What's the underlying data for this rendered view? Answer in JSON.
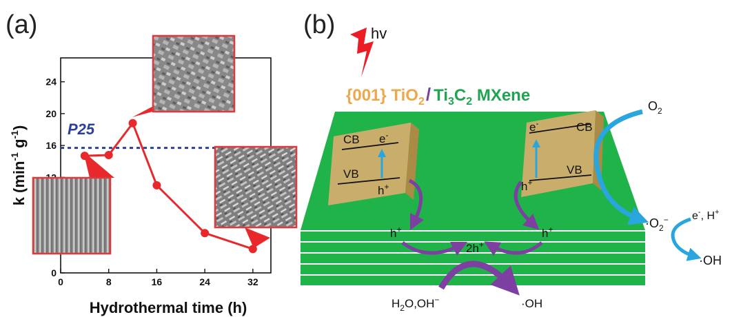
{
  "panel_a": {
    "label": "(a)",
    "reference_label": "P25",
    "chart_data": {
      "type": "line",
      "xlabel": "Hydrothermal time (h)",
      "ylabel_main": "k (min",
      "ylabel_exp1": "-1",
      "ylabel_g": " g",
      "ylabel_exp2": "-1",
      "ylabel_end": ")",
      "x": [
        4,
        8,
        12,
        16,
        24,
        32
      ],
      "y": [
        14.7,
        14.8,
        18.8,
        11.0,
        5.0,
        3.0
      ],
      "xlim": [
        0,
        35
      ],
      "ylim": [
        0,
        27
      ],
      "xticks": [
        0,
        8,
        16,
        24,
        32
      ],
      "yticks": [
        0,
        4,
        8,
        12,
        16,
        20,
        24
      ],
      "reference_y": 15.7,
      "line_color": "#e8282b",
      "reference_color": "#2b3f9c"
    }
  },
  "panel_b": {
    "label": "(b)",
    "light": "hv",
    "title": {
      "part1": "{001} TiO",
      "part1_sub": "2",
      "slash": "/",
      "part2": "Ti",
      "part2_sub1": "3",
      "part2_mid": "C",
      "part2_sub2": "2",
      "part2_end": " MXene"
    },
    "left_crystal": {
      "cb": "CB",
      "vb": "VB",
      "electron": "e",
      "electron_sup": "-",
      "hole": "h",
      "hole_sup": "+"
    },
    "right_crystal": {
      "cb": "CB",
      "vb": "VB",
      "electron": "e",
      "electron_sup": "-",
      "hole": "h",
      "hole_sup": "+"
    },
    "holes_left": {
      "text": "h",
      "sup": "+"
    },
    "holes_right": {
      "text": "h",
      "sup": "+"
    },
    "two_holes": {
      "text": "2h",
      "sup": "+"
    },
    "reactant": {
      "p1": "H",
      "sub": "2",
      "p2": "O,OH",
      "sup": "−"
    },
    "product_oh_bottom": {
      "pre": "·",
      "text": "OH"
    },
    "o2": {
      "text": "O",
      "sub": "2"
    },
    "superoxide": {
      "pre": "·",
      "text": "O",
      "sub": "2",
      "sup": "−"
    },
    "e_h": {
      "e": "e",
      "e_sup": "-",
      "sep": ", H",
      "h_sup": "+"
    },
    "oh_right": {
      "pre": "·",
      "text": "OH"
    },
    "colors": {
      "mxene": "#1fb34a",
      "crystal": "#c9ad6a",
      "tio2": "#f0a64b",
      "mxene_text": "#1fa450",
      "slash": "#7b3fa0",
      "purple_arrow": "#7d3fa0",
      "blue_arrow": "#29a6de",
      "lightning": "#ed1c24"
    }
  }
}
